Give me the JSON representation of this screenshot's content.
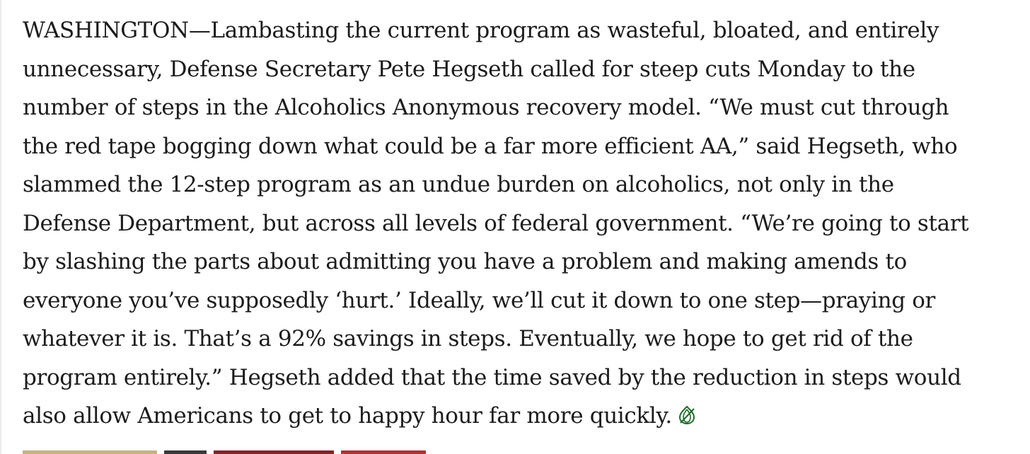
{
  "article": {
    "lines": [
      "WASHINGTON—Lambasting the current program as wasteful, bloated, and entirely",
      "unnecessary, Defense Secretary Pete Hegseth called for steep cuts Monday to the",
      "number of steps in the Alcoholics Anonymous recovery model. “We must cut through",
      "the red tape bogging down what could be a far more efficient AA,” said Hegseth, who",
      "slammed the 12-step program as an undue burden on alcoholics, not only in the",
      "Defense Department, but across all levels of federal government. “We’re going to start",
      "by slashing the parts about admitting you have a problem and making amends to",
      "everyone you’ve supposedly ‘hurt.’ Ideally, we’ll cut it down to one step—praying or",
      "whatever it is. That’s a 92% savings in steps. Eventually, we hope to get rid of the",
      "program entirely.” Hegseth added that the time saved by the reduction in steps would",
      "also allow Americans to get to happy hour far more quickly."
    ],
    "end_icon": "onion-logo-icon",
    "end_icon_color": "#1e6b2a"
  },
  "colors": {
    "text": "#1b1b1b",
    "background": "#ffffff",
    "left_border": "#ececec",
    "strip": [
      "#c9b27a",
      "#3a3a3a",
      "#8a1f24",
      "#b5302f"
    ]
  }
}
